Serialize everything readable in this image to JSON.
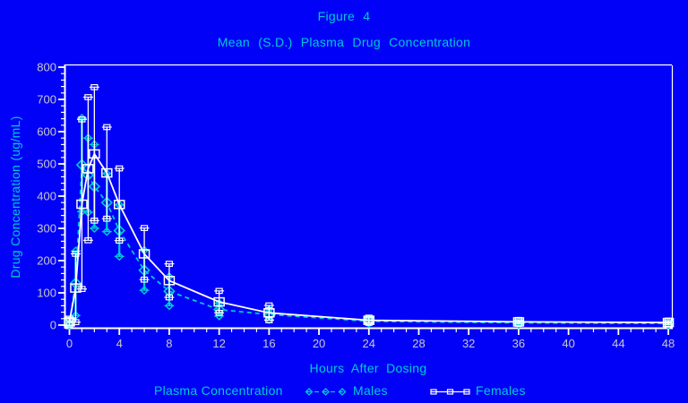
{
  "colors": {
    "background": "#0101f8",
    "accent_cyan": "#00ccd2",
    "axis_white": "#ffffff",
    "tick_label": "#c8c8c8"
  },
  "chart_data": {
    "type": "line",
    "title": "Figure 4",
    "subtitle": "Mean (S.D.) Plasma Drug Concentration",
    "xlabel": "Hours After Dosing",
    "ylabel": "Drug Concentration (ug/mL)",
    "legend_title": "Plasma Concentration",
    "xlim": [
      0,
      48
    ],
    "ylim": [
      0,
      800
    ],
    "x_ticks": [
      0,
      4,
      8,
      12,
      16,
      20,
      24,
      28,
      32,
      36,
      40,
      44,
      48
    ],
    "x_minor_step": 1,
    "y_ticks": [
      0,
      100,
      200,
      300,
      400,
      500,
      600,
      700,
      800
    ],
    "y_minor_step": 20,
    "grid": false,
    "legend_position": "bottom",
    "error_bars": "standard deviation",
    "x": [
      0,
      0.5,
      1,
      1.5,
      2,
      3,
      4,
      6,
      8,
      12,
      16,
      24,
      36,
      48
    ],
    "series": [
      {
        "name": "Males",
        "color": "#00ccd2",
        "line": "dashed",
        "marker": "diamond",
        "mean": [
          8,
          130,
          497,
          465,
          430,
          380,
          293,
          170,
          105,
          48,
          33,
          12,
          7,
          5
        ],
        "sd": [
          8,
          100,
          145,
          115,
          130,
          90,
          80,
          62,
          45,
          20,
          16,
          7,
          5,
          4
        ]
      },
      {
        "name": "Females",
        "color": "#ffffff",
        "line": "solid",
        "marker": "square",
        "mean": [
          10,
          115,
          375,
          485,
          531,
          472,
          374,
          221,
          138,
          72,
          38,
          15,
          10,
          8
        ],
        "sd": [
          10,
          106,
          263,
          222,
          207,
          142,
          112,
          80,
          52,
          34,
          23,
          8,
          6,
          6
        ]
      }
    ]
  }
}
